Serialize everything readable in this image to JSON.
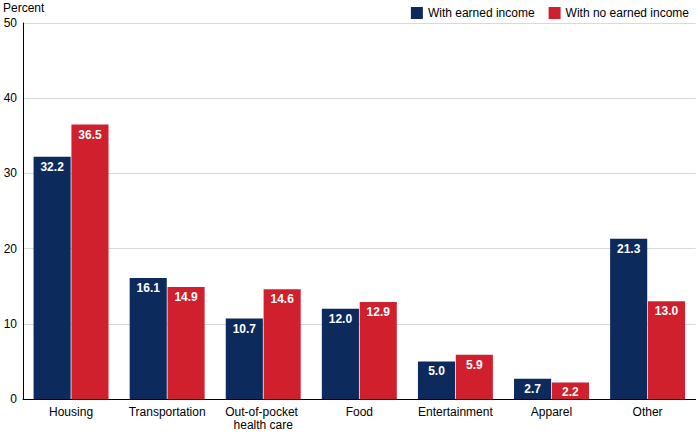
{
  "chart_data": {
    "type": "bar",
    "y_label": "Percent",
    "categories": [
      "Housing",
      "Transportation",
      "Out-of-pocket health care",
      "Food",
      "Entertainment",
      "Apparel",
      "Other"
    ],
    "series": [
      {
        "name": "With earned income",
        "color": "#0c2a5b",
        "values": [
          32.2,
          16.1,
          10.7,
          12.0,
          5.0,
          2.7,
          21.3
        ],
        "value_labels": [
          "32.2",
          "16.1",
          "10.7",
          "12.0",
          "5.0",
          "2.7",
          "21.3"
        ]
      },
      {
        "name": "With no earned income",
        "color": "#d0202e",
        "values": [
          36.5,
          14.9,
          14.6,
          12.9,
          5.9,
          2.2,
          13.0
        ],
        "value_labels": [
          "36.5",
          "14.9",
          "14.6",
          "12.9",
          "5.9",
          "2.2",
          "13.0"
        ]
      }
    ],
    "ylim": [
      0,
      50
    ],
    "yticks": [
      0,
      10,
      20,
      30,
      40,
      50
    ],
    "grid": true,
    "legend": "top-right",
    "data_labels": true
  }
}
